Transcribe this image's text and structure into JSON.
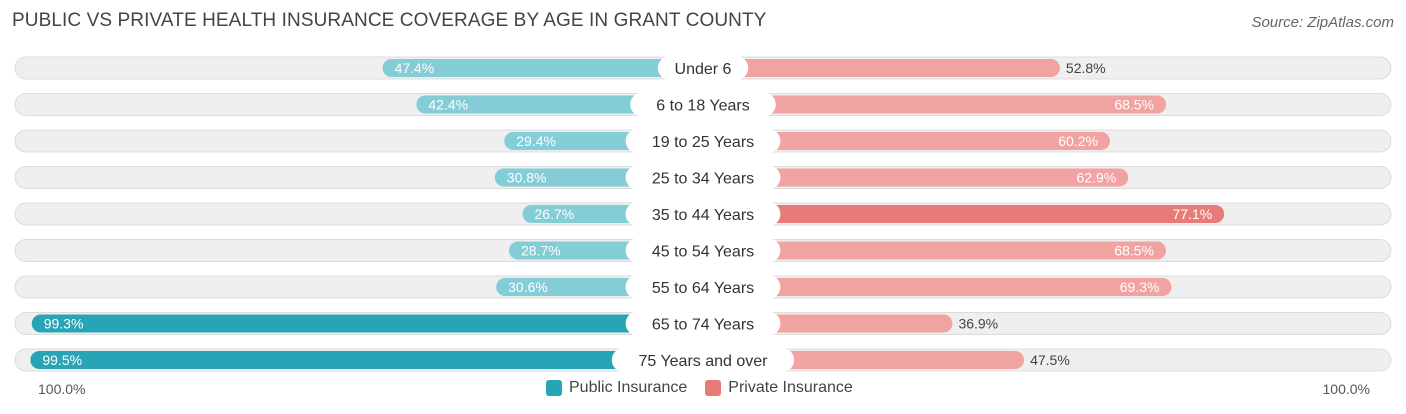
{
  "header": {
    "title": "PUBLIC VS PRIVATE HEALTH INSURANCE COVERAGE BY AGE IN GRANT COUNTY",
    "source": "Source: ZipAtlas.com"
  },
  "axis": {
    "left_label": "100.0%",
    "right_label": "100.0%"
  },
  "legend": {
    "public_label": "Public Insurance",
    "private_label": "Private Insurance"
  },
  "colors": {
    "public_light": "#84ccd6",
    "public_dark": "#27a5b7",
    "private_light": "#f1a3a1",
    "private_dark": "#e87a78",
    "track": "#efefef"
  },
  "chart_data": {
    "type": "bar",
    "orientation": "diverging-horizontal",
    "title": "PUBLIC VS PRIVATE HEALTH INSURANCE COVERAGE BY AGE IN GRANT COUNTY",
    "categories": [
      "Under 6",
      "6 to 18 Years",
      "19 to 25 Years",
      "25 to 34 Years",
      "35 to 44 Years",
      "45 to 54 Years",
      "55 to 64 Years",
      "65 to 74 Years",
      "75 Years and over"
    ],
    "series": [
      {
        "name": "Public Insurance",
        "values": [
          47.4,
          42.4,
          29.4,
          30.8,
          26.7,
          28.7,
          30.6,
          99.3,
          99.5
        ],
        "labels": [
          "47.4%",
          "42.4%",
          "29.4%",
          "30.8%",
          "26.7%",
          "28.7%",
          "30.6%",
          "99.3%",
          "99.5%"
        ]
      },
      {
        "name": "Private Insurance",
        "values": [
          52.8,
          68.5,
          60.2,
          62.9,
          77.1,
          68.5,
          69.3,
          36.9,
          47.5
        ],
        "labels": [
          "52.8%",
          "68.5%",
          "60.2%",
          "62.9%",
          "77.1%",
          "68.5%",
          "69.3%",
          "36.9%",
          "47.5%"
        ]
      }
    ],
    "xlim": [
      0,
      100
    ],
    "xlabel_left": "100.0%",
    "xlabel_right": "100.0%",
    "legend_position": "bottom-center"
  }
}
